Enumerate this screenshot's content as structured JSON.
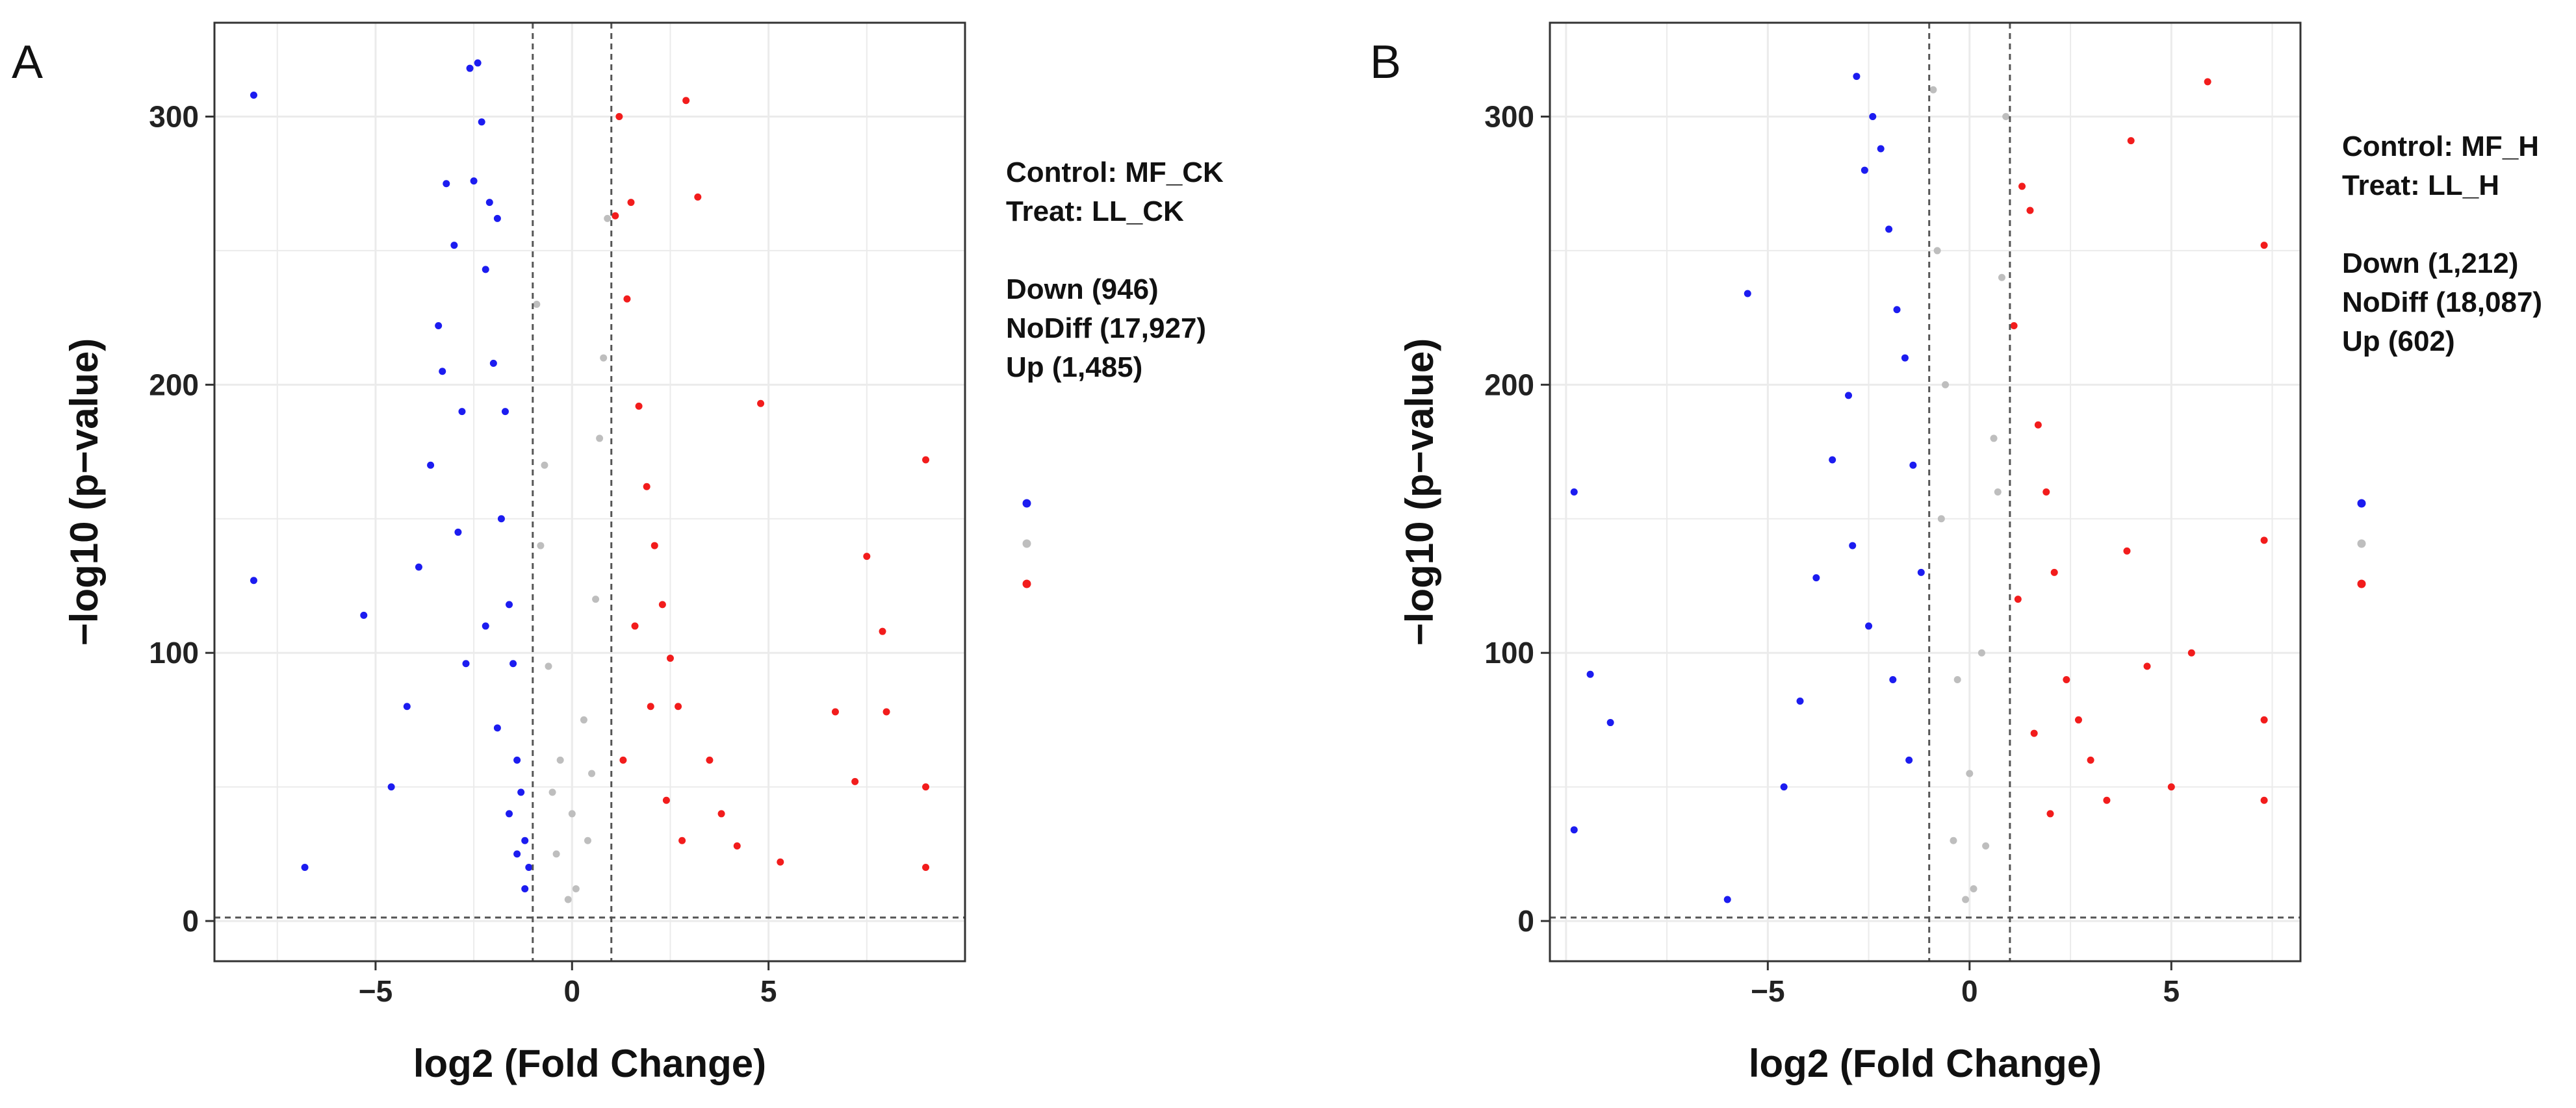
{
  "chart_data": [
    {
      "type": "scatter",
      "panel_label": "A",
      "xlabel": "log2 (Fold Change)",
      "ylabel": "−log10 (p−value)",
      "xlim": [
        -9.1,
        10.0
      ],
      "ylim": [
        -15,
        335
      ],
      "x_ticks": [
        -5,
        0,
        5
      ],
      "x_tick_labels": [
        "−5",
        "0",
        "5"
      ],
      "y_ticks": [
        0,
        100,
        200,
        300
      ],
      "y_tick_labels": [
        "0",
        "100",
        "200",
        "300"
      ],
      "thresholds": {
        "log2fc": [
          -1,
          1
        ],
        "neg_log10_p": 1.3
      },
      "grid": true,
      "legend_position": "right",
      "annotation": {
        "control": "Control: MF_CK",
        "treat": "Treat: LL_CK"
      },
      "series": [
        {
          "name": "Down",
          "label": "Down (946)",
          "count": 946,
          "color": "#1c1cf0",
          "x": [
            -8.1,
            -8.1,
            -6.8,
            -5.3,
            -4.6,
            -4.2,
            -3.9,
            -3.6,
            -3.4,
            -3.2,
            -3.0,
            -2.8,
            -2.6,
            -2.5,
            -2.4,
            -2.3,
            -2.2,
            -2.1,
            -2.0,
            -1.9,
            -1.8,
            -1.7,
            -1.6,
            -1.5,
            -1.4,
            -1.3,
            -1.2,
            -1.1,
            -3.3,
            -2.9,
            -2.7,
            -2.2,
            -1.9,
            -1.6,
            -1.4,
            -1.2
          ],
          "y": [
            308,
            127,
            20,
            114,
            50,
            80,
            132,
            170,
            222,
            275,
            252,
            190,
            318,
            276,
            320,
            298,
            243,
            268,
            208,
            262,
            150,
            190,
            118,
            96,
            60,
            48,
            30,
            20,
            205,
            145,
            96,
            110,
            72,
            40,
            25,
            12
          ]
        },
        {
          "name": "NoDiff",
          "label": "NoDiff (17,927)",
          "count": 17927,
          "color": "#bebebe",
          "x": [
            -0.9,
            -0.6,
            -0.3,
            0.0,
            0.3,
            0.6,
            0.9,
            -0.7,
            0.7,
            -0.4,
            0.4,
            -0.8,
            0.8,
            0.1,
            -0.1,
            0.5,
            -0.5
          ],
          "y": [
            230,
            95,
            60,
            40,
            75,
            120,
            262,
            170,
            180,
            25,
            30,
            140,
            210,
            12,
            8,
            55,
            48
          ]
        },
        {
          "name": "Up",
          "label": "Up (1,485)",
          "count": 1485,
          "color": "#f21c1c",
          "x": [
            1.1,
            1.2,
            1.4,
            1.5,
            1.7,
            1.9,
            2.1,
            2.3,
            2.5,
            2.7,
            2.9,
            3.2,
            3.5,
            3.8,
            4.2,
            4.8,
            5.3,
            6.7,
            7.2,
            7.5,
            7.9,
            8.0,
            9.0,
            9.0,
            9.0,
            1.3,
            1.6,
            2.0,
            2.4,
            2.8
          ],
          "y": [
            263,
            300,
            232,
            268,
            192,
            162,
            140,
            118,
            98,
            80,
            306,
            270,
            60,
            40,
            28,
            193,
            22,
            78,
            52,
            136,
            108,
            78,
            172,
            50,
            20,
            60,
            110,
            80,
            45,
            30
          ]
        }
      ]
    },
    {
      "type": "scatter",
      "panel_label": "B",
      "xlabel": "log2 (Fold Change)",
      "ylabel": "−log10 (p−value)",
      "xlim": [
        -10.4,
        8.2
      ],
      "ylim": [
        -15,
        335
      ],
      "x_ticks": [
        -5,
        0,
        5
      ],
      "x_tick_labels": [
        "−5",
        "0",
        "5"
      ],
      "y_ticks": [
        0,
        100,
        200,
        300
      ],
      "y_tick_labels": [
        "0",
        "100",
        "200",
        "300"
      ],
      "thresholds": {
        "log2fc": [
          -1,
          1
        ],
        "neg_log10_p": 1.3
      },
      "grid": true,
      "legend_position": "right",
      "annotation": {
        "control": "Control: MF_H",
        "treat": "Treat: LL_H"
      },
      "series": [
        {
          "name": "Down",
          "label": "Down (1,212)",
          "count": 1212,
          "color": "#1c1cf0",
          "x": [
            -9.8,
            -9.8,
            -9.4,
            -8.9,
            -6.0,
            -5.5,
            -4.6,
            -4.2,
            -3.8,
            -3.4,
            -3.0,
            -2.8,
            -2.6,
            -2.4,
            -2.2,
            -2.0,
            -1.8,
            -1.6,
            -1.4,
            -1.2,
            -2.9,
            -2.5,
            -1.9,
            -1.5
          ],
          "y": [
            160,
            34,
            92,
            74,
            8,
            234,
            50,
            82,
            128,
            172,
            196,
            315,
            280,
            300,
            288,
            258,
            228,
            210,
            170,
            130,
            140,
            110,
            90,
            60
          ]
        },
        {
          "name": "NoDiff",
          "label": "NoDiff (18,087)",
          "count": 18087,
          "color": "#bebebe",
          "x": [
            -0.9,
            -0.6,
            -0.3,
            0.0,
            0.3,
            0.6,
            0.9,
            -0.7,
            0.7,
            -0.4,
            0.4,
            -0.8,
            0.8,
            0.1,
            -0.1
          ],
          "y": [
            310,
            200,
            90,
            55,
            100,
            180,
            300,
            150,
            160,
            30,
            28,
            250,
            240,
            12,
            8
          ]
        },
        {
          "name": "Up",
          "label": "Up (602)",
          "count": 602,
          "color": "#f21c1c",
          "x": [
            1.1,
            1.3,
            1.5,
            1.7,
            1.9,
            2.1,
            2.4,
            2.7,
            3.0,
            3.4,
            3.9,
            4.0,
            4.4,
            5.0,
            5.5,
            5.9,
            7.3,
            7.3,
            7.3,
            7.3,
            1.2,
            1.6,
            2.0
          ],
          "y": [
            222,
            274,
            265,
            185,
            160,
            130,
            90,
            75,
            60,
            45,
            138,
            291,
            95,
            50,
            100,
            313,
            252,
            142,
            75,
            45,
            120,
            70,
            40
          ]
        }
      ]
    }
  ]
}
